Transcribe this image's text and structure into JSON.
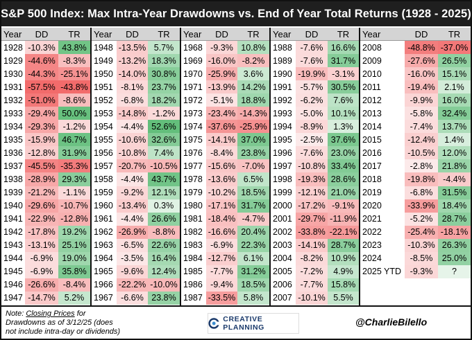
{
  "title": "S&P 500 Index: Max Intra-Year Drawdowns vs. End of Year Total Returns (1928 - 2025)",
  "headers": {
    "year": "Year",
    "dd": "DD",
    "tr": "TR"
  },
  "footer": {
    "note_prefix": "Note: ",
    "note_underlined": "Closing Prices",
    "note_rest": " for Drawdowns as of 3/12/25 (does not include intra-day or dividends)",
    "logo_text": "CREATIVE PLANNING",
    "handle": "@CharlieBilello"
  },
  "colors": {
    "negative_strong": "#f26b6b",
    "negative_light": "#fbe3e3",
    "positive_strong": "#63be7b",
    "positive_light": "#e6f4e9",
    "header_bg": "#d4d4d4",
    "title_bg": "#1f1f1f"
  },
  "chart_data": {
    "type": "table",
    "title": "S&P 500 Index: Max Intra-Year Drawdowns vs. End of Year Total Returns (1928 - 2025)",
    "columns": [
      "Year",
      "DD",
      "TR"
    ],
    "rows": [
      [
        "1928",
        "-10.3%",
        "43.8%"
      ],
      [
        "1929",
        "-44.6%",
        "-8.3%"
      ],
      [
        "1930",
        "-44.3%",
        "-25.1%"
      ],
      [
        "1931",
        "-57.5%",
        "-43.8%"
      ],
      [
        "1932",
        "-51.0%",
        "-8.6%"
      ],
      [
        "1933",
        "-29.4%",
        "50.0%"
      ],
      [
        "1934",
        "-29.3%",
        "-1.2%"
      ],
      [
        "1935",
        "-15.9%",
        "46.7%"
      ],
      [
        "1936",
        "-12.8%",
        "31.9%"
      ],
      [
        "1937",
        "-45.5%",
        "-35.3%"
      ],
      [
        "1938",
        "-28.9%",
        "29.3%"
      ],
      [
        "1939",
        "-21.2%",
        "-1.1%"
      ],
      [
        "1940",
        "-29.6%",
        "-10.7%"
      ],
      [
        "1941",
        "-22.9%",
        "-12.8%"
      ],
      [
        "1942",
        "-17.8%",
        "19.2%"
      ],
      [
        "1943",
        "-13.1%",
        "25.1%"
      ],
      [
        "1944",
        "-6.9%",
        "19.0%"
      ],
      [
        "1945",
        "-6.9%",
        "35.8%"
      ],
      [
        "1946",
        "-26.6%",
        "-8.4%"
      ],
      [
        "1947",
        "-14.7%",
        "5.2%"
      ],
      [
        "1948",
        "-13.5%",
        "5.7%"
      ],
      [
        "1949",
        "-13.2%",
        "18.3%"
      ],
      [
        "1950",
        "-14.0%",
        "30.8%"
      ],
      [
        "1951",
        "-8.1%",
        "23.7%"
      ],
      [
        "1952",
        "-6.8%",
        "18.2%"
      ],
      [
        "1953",
        "-14.8%",
        "-1.2%"
      ],
      [
        "1954",
        "-4.4%",
        "52.6%"
      ],
      [
        "1955",
        "-10.6%",
        "32.6%"
      ],
      [
        "1956",
        "-10.8%",
        "7.4%"
      ],
      [
        "1957",
        "-20.7%",
        "-10.5%"
      ],
      [
        "1958",
        "-4.4%",
        "43.7%"
      ],
      [
        "1959",
        "-9.2%",
        "12.1%"
      ],
      [
        "1960",
        "-13.4%",
        "0.3%"
      ],
      [
        "1961",
        "-4.4%",
        "26.6%"
      ],
      [
        "1962",
        "-26.9%",
        "-8.8%"
      ],
      [
        "1963",
        "-6.5%",
        "22.6%"
      ],
      [
        "1964",
        "-3.5%",
        "16.4%"
      ],
      [
        "1965",
        "-9.6%",
        "12.4%"
      ],
      [
        "1966",
        "-22.2%",
        "-10.0%"
      ],
      [
        "1967",
        "-6.6%",
        "23.8%"
      ],
      [
        "1968",
        "-9.3%",
        "10.8%"
      ],
      [
        "1969",
        "-16.0%",
        "-8.2%"
      ],
      [
        "1970",
        "-25.9%",
        "3.6%"
      ],
      [
        "1971",
        "-13.9%",
        "14.2%"
      ],
      [
        "1972",
        "-5.1%",
        "18.8%"
      ],
      [
        "1973",
        "-23.4%",
        "-14.3%"
      ],
      [
        "1974",
        "-37.6%",
        "-25.9%"
      ],
      [
        "1975",
        "-14.1%",
        "37.0%"
      ],
      [
        "1976",
        "-8.4%",
        "23.8%"
      ],
      [
        "1977",
        "-15.6%",
        "-7.0%"
      ],
      [
        "1978",
        "-13.6%",
        "6.5%"
      ],
      [
        "1979",
        "-10.2%",
        "18.5%"
      ],
      [
        "1980",
        "-17.1%",
        "31.7%"
      ],
      [
        "1981",
        "-18.4%",
        "-4.7%"
      ],
      [
        "1982",
        "-16.6%",
        "20.4%"
      ],
      [
        "1983",
        "-6.9%",
        "22.3%"
      ],
      [
        "1984",
        "-12.7%",
        "6.1%"
      ],
      [
        "1985",
        "-7.7%",
        "31.2%"
      ],
      [
        "1986",
        "-9.4%",
        "18.5%"
      ],
      [
        "1987",
        "-33.5%",
        "5.8%"
      ],
      [
        "1988",
        "-7.6%",
        "16.6%"
      ],
      [
        "1989",
        "-7.6%",
        "31.7%"
      ],
      [
        "1990",
        "-19.9%",
        "-3.1%"
      ],
      [
        "1991",
        "-5.7%",
        "30.5%"
      ],
      [
        "1992",
        "-6.2%",
        "7.6%"
      ],
      [
        "1993",
        "-5.0%",
        "10.1%"
      ],
      [
        "1994",
        "-8.9%",
        "1.3%"
      ],
      [
        "1995",
        "-2.5%",
        "37.6%"
      ],
      [
        "1996",
        "-7.6%",
        "23.0%"
      ],
      [
        "1997",
        "-10.8%",
        "33.4%"
      ],
      [
        "1998",
        "-19.3%",
        "28.6%"
      ],
      [
        "1999",
        "-12.1%",
        "21.0%"
      ],
      [
        "2000",
        "-17.2%",
        "-9.1%"
      ],
      [
        "2001",
        "-29.7%",
        "-11.9%"
      ],
      [
        "2002",
        "-33.8%",
        "-22.1%"
      ],
      [
        "2003",
        "-14.1%",
        "28.7%"
      ],
      [
        "2004",
        "-8.2%",
        "10.9%"
      ],
      [
        "2005",
        "-7.2%",
        "4.9%"
      ],
      [
        "2006",
        "-7.7%",
        "15.8%"
      ],
      [
        "2007",
        "-10.1%",
        "5.5%"
      ],
      [
        "2008",
        "-48.8%",
        "-37.0%"
      ],
      [
        "2009",
        "-27.6%",
        "26.5%"
      ],
      [
        "2010",
        "-16.0%",
        "15.1%"
      ],
      [
        "2011",
        "-19.4%",
        "2.1%"
      ],
      [
        "2012",
        "-9.9%",
        "16.0%"
      ],
      [
        "2013",
        "-5.8%",
        "32.4%"
      ],
      [
        "2014",
        "-7.4%",
        "13.7%"
      ],
      [
        "2015",
        "-12.4%",
        "1.4%"
      ],
      [
        "2016",
        "-10.5%",
        "12.0%"
      ],
      [
        "2017",
        "-2.8%",
        "21.8%"
      ],
      [
        "2018",
        "-19.8%",
        "-4.4%"
      ],
      [
        "2019",
        "-6.8%",
        "31.5%"
      ],
      [
        "2020",
        "-33.9%",
        "18.4%"
      ],
      [
        "2021",
        "-5.2%",
        "28.7%"
      ],
      [
        "2022",
        "-25.4%",
        "-18.1%"
      ],
      [
        "2023",
        "-10.3%",
        "26.3%"
      ],
      [
        "2024",
        "-8.5%",
        "25.0%"
      ],
      [
        "2025 YTD",
        "-9.3%",
        "?"
      ]
    ]
  }
}
